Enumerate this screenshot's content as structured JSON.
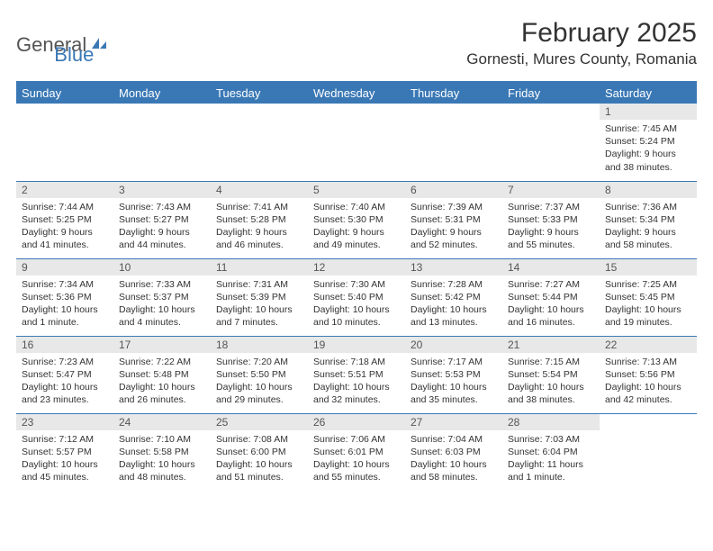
{
  "logo": {
    "part1": "General",
    "part2": "Blue"
  },
  "title": "February 2025",
  "location": "Gornesti, Mures County, Romania",
  "colors": {
    "accent": "#3a78b5",
    "header_text": "#ffffff",
    "daynum_bg": "#e8e8e8",
    "text": "#333333"
  },
  "weekdays": [
    "Sunday",
    "Monday",
    "Tuesday",
    "Wednesday",
    "Thursday",
    "Friday",
    "Saturday"
  ],
  "weeks": [
    [
      null,
      null,
      null,
      null,
      null,
      null,
      {
        "n": "1",
        "sunrise": "7:45 AM",
        "sunset": "5:24 PM",
        "daylight": "9 hours and 38 minutes."
      }
    ],
    [
      {
        "n": "2",
        "sunrise": "7:44 AM",
        "sunset": "5:25 PM",
        "daylight": "9 hours and 41 minutes."
      },
      {
        "n": "3",
        "sunrise": "7:43 AM",
        "sunset": "5:27 PM",
        "daylight": "9 hours and 44 minutes."
      },
      {
        "n": "4",
        "sunrise": "7:41 AM",
        "sunset": "5:28 PM",
        "daylight": "9 hours and 46 minutes."
      },
      {
        "n": "5",
        "sunrise": "7:40 AM",
        "sunset": "5:30 PM",
        "daylight": "9 hours and 49 minutes."
      },
      {
        "n": "6",
        "sunrise": "7:39 AM",
        "sunset": "5:31 PM",
        "daylight": "9 hours and 52 minutes."
      },
      {
        "n": "7",
        "sunrise": "7:37 AM",
        "sunset": "5:33 PM",
        "daylight": "9 hours and 55 minutes."
      },
      {
        "n": "8",
        "sunrise": "7:36 AM",
        "sunset": "5:34 PM",
        "daylight": "9 hours and 58 minutes."
      }
    ],
    [
      {
        "n": "9",
        "sunrise": "7:34 AM",
        "sunset": "5:36 PM",
        "daylight": "10 hours and 1 minute."
      },
      {
        "n": "10",
        "sunrise": "7:33 AM",
        "sunset": "5:37 PM",
        "daylight": "10 hours and 4 minutes."
      },
      {
        "n": "11",
        "sunrise": "7:31 AM",
        "sunset": "5:39 PM",
        "daylight": "10 hours and 7 minutes."
      },
      {
        "n": "12",
        "sunrise": "7:30 AM",
        "sunset": "5:40 PM",
        "daylight": "10 hours and 10 minutes."
      },
      {
        "n": "13",
        "sunrise": "7:28 AM",
        "sunset": "5:42 PM",
        "daylight": "10 hours and 13 minutes."
      },
      {
        "n": "14",
        "sunrise": "7:27 AM",
        "sunset": "5:44 PM",
        "daylight": "10 hours and 16 minutes."
      },
      {
        "n": "15",
        "sunrise": "7:25 AM",
        "sunset": "5:45 PM",
        "daylight": "10 hours and 19 minutes."
      }
    ],
    [
      {
        "n": "16",
        "sunrise": "7:23 AM",
        "sunset": "5:47 PM",
        "daylight": "10 hours and 23 minutes."
      },
      {
        "n": "17",
        "sunrise": "7:22 AM",
        "sunset": "5:48 PM",
        "daylight": "10 hours and 26 minutes."
      },
      {
        "n": "18",
        "sunrise": "7:20 AM",
        "sunset": "5:50 PM",
        "daylight": "10 hours and 29 minutes."
      },
      {
        "n": "19",
        "sunrise": "7:18 AM",
        "sunset": "5:51 PM",
        "daylight": "10 hours and 32 minutes."
      },
      {
        "n": "20",
        "sunrise": "7:17 AM",
        "sunset": "5:53 PM",
        "daylight": "10 hours and 35 minutes."
      },
      {
        "n": "21",
        "sunrise": "7:15 AM",
        "sunset": "5:54 PM",
        "daylight": "10 hours and 38 minutes."
      },
      {
        "n": "22",
        "sunrise": "7:13 AM",
        "sunset": "5:56 PM",
        "daylight": "10 hours and 42 minutes."
      }
    ],
    [
      {
        "n": "23",
        "sunrise": "7:12 AM",
        "sunset": "5:57 PM",
        "daylight": "10 hours and 45 minutes."
      },
      {
        "n": "24",
        "sunrise": "7:10 AM",
        "sunset": "5:58 PM",
        "daylight": "10 hours and 48 minutes."
      },
      {
        "n": "25",
        "sunrise": "7:08 AM",
        "sunset": "6:00 PM",
        "daylight": "10 hours and 51 minutes."
      },
      {
        "n": "26",
        "sunrise": "7:06 AM",
        "sunset": "6:01 PM",
        "daylight": "10 hours and 55 minutes."
      },
      {
        "n": "27",
        "sunrise": "7:04 AM",
        "sunset": "6:03 PM",
        "daylight": "10 hours and 58 minutes."
      },
      {
        "n": "28",
        "sunrise": "7:03 AM",
        "sunset": "6:04 PM",
        "daylight": "11 hours and 1 minute."
      },
      null
    ]
  ]
}
